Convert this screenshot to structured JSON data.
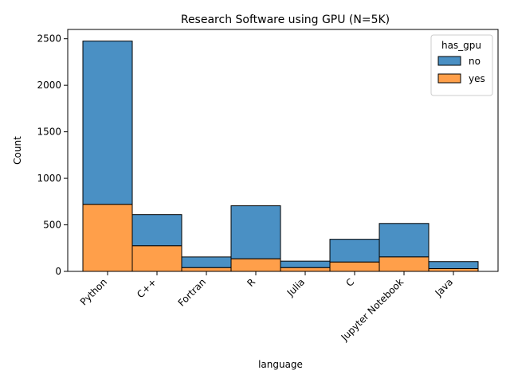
{
  "chart_data": {
    "type": "bar",
    "stacked": true,
    "title": "Research Software using GPU (N=5K)",
    "xlabel": "language",
    "ylabel": "Count",
    "categories": [
      "Python",
      "C++",
      "Fortran",
      "R",
      "Julia",
      "C",
      "Jupyter Notebook",
      "Java"
    ],
    "series": [
      {
        "name": "no",
        "color": "#4a90c4",
        "values": [
          1755,
          335,
          115,
          570,
          70,
          245,
          360,
          75
        ]
      },
      {
        "name": "yes",
        "color": "#ff9f4a",
        "values": [
          720,
          275,
          40,
          135,
          40,
          100,
          155,
          30
        ]
      }
    ],
    "ylim": [
      0,
      2600
    ],
    "yticks": [
      0,
      500,
      1000,
      1500,
      2000,
      2500
    ],
    "grid": false,
    "legend": {
      "title": "has_gpu",
      "placement": "top-right"
    }
  }
}
